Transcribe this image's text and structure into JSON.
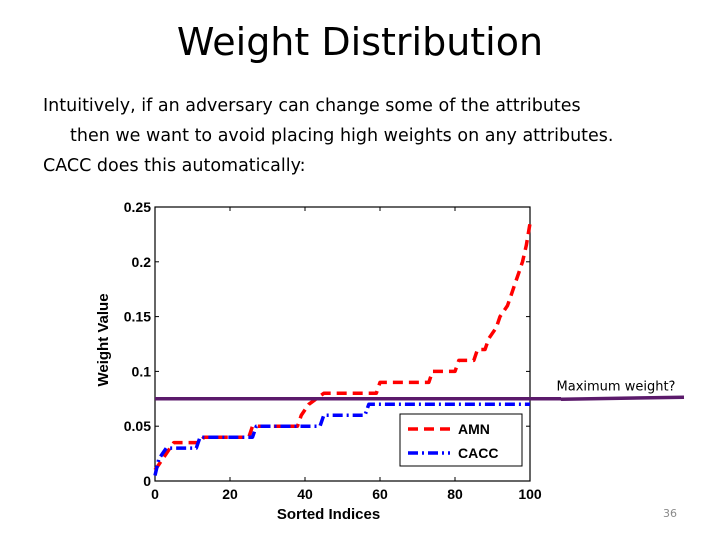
{
  "slide": {
    "title": "Weight Distribution",
    "paragraph_lines": [
      "Intuitively, if an adversary can change some of the attributes",
      "then we want to avoid placing high weights on any attributes.",
      "CACC does this automatically:"
    ],
    "page_number": "36"
  },
  "colors": {
    "amn": "#ff0000",
    "cacc": "#0000ff",
    "threshold_line": "#5b1a6b"
  },
  "chart_data": {
    "type": "line",
    "title": "",
    "xlabel": "Sorted Indices",
    "ylabel": "Weight Value",
    "xlim": [
      0,
      100
    ],
    "ylim": [
      0,
      0.25
    ],
    "xticks": [
      0,
      20,
      40,
      60,
      80,
      100
    ],
    "yticks": [
      0,
      0.05,
      0.1,
      0.15,
      0.2,
      0.25
    ],
    "ytick_labels": [
      "0",
      "0.05",
      "0.1",
      "0.15",
      "0.2",
      "0.25"
    ],
    "legend_position": "bottom-right",
    "series": [
      {
        "name": "AMN",
        "style": "dashed",
        "x": [
          0,
          1,
          2,
          3,
          4,
          5,
          12,
          13,
          25,
          26,
          38,
          39,
          40,
          41,
          43,
          45,
          59,
          60,
          73,
          74,
          80,
          81,
          85,
          86,
          88,
          89,
          91,
          92,
          94,
          95,
          96,
          97,
          98,
          99,
          100
        ],
        "y": [
          0.01,
          0.015,
          0.02,
          0.025,
          0.03,
          0.035,
          0.035,
          0.04,
          0.04,
          0.05,
          0.05,
          0.06,
          0.065,
          0.07,
          0.075,
          0.08,
          0.08,
          0.09,
          0.09,
          0.1,
          0.1,
          0.11,
          0.11,
          0.12,
          0.12,
          0.13,
          0.14,
          0.15,
          0.16,
          0.17,
          0.18,
          0.19,
          0.2,
          0.215,
          0.235
        ]
      },
      {
        "name": "CACC",
        "style": "dashdot",
        "x": [
          0,
          1,
          2,
          3,
          4,
          11,
          12,
          26,
          27,
          44,
          45,
          56,
          57,
          100
        ],
        "y": [
          0.005,
          0.02,
          0.025,
          0.03,
          0.03,
          0.03,
          0.04,
          0.04,
          0.05,
          0.05,
          0.06,
          0.06,
          0.07,
          0.07
        ]
      }
    ],
    "annotations": [
      {
        "text": "Maximum weight?",
        "type": "horizontal-line",
        "y": 0.076
      }
    ]
  }
}
